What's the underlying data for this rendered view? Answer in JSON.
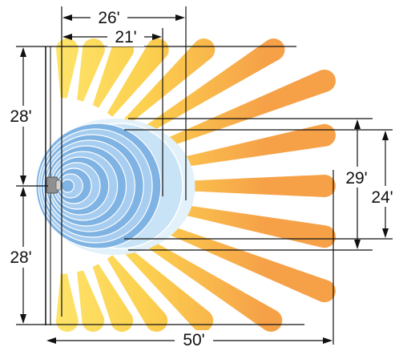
{
  "dimensions": {
    "horizontal_top_outer": "26'",
    "horizontal_top_inner": "21'",
    "vertical_left_upper": "28'",
    "vertical_left_lower": "28'",
    "vertical_right_outer": "29'",
    "vertical_right_inner": "24'",
    "horizontal_bottom": "50'"
  },
  "colors": {
    "ray_inner": "#fde35a",
    "ray_outer": "#f7a84a",
    "zone_light": "#dbeef9",
    "zone_mid": "#a9d2f0",
    "zone_ring": "#ffffff",
    "sensor": "#8a8a8a",
    "line": "#111111"
  },
  "icons": {
    "sensor": "motion-sensor-icon"
  }
}
